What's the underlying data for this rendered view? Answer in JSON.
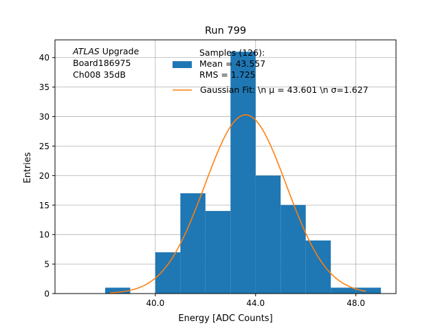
{
  "chart_data": {
    "type": "bar",
    "title": "Run 799",
    "xlabel": "Energy [ADC Counts]",
    "ylabel": "Entries",
    "xlim": [
      36.0,
      49.6
    ],
    "ylim": [
      0,
      43
    ],
    "grid": true,
    "x_ticks": [
      40.0,
      44.0,
      48.0
    ],
    "x_tick_labels": [
      "40.0",
      "44.0",
      "48.0"
    ],
    "y_ticks": [
      0,
      5,
      10,
      15,
      20,
      25,
      30,
      35,
      40
    ],
    "y_tick_labels": [
      "0",
      "5",
      "10",
      "15",
      "20",
      "25",
      "30",
      "35",
      "40"
    ],
    "bin_edges": [
      38.0,
      39.0,
      40.0,
      41.0,
      42.0,
      43.0,
      44.0,
      45.0,
      46.0,
      47.0,
      48.0,
      49.0
    ],
    "counts": [
      1,
      0,
      7,
      17,
      14,
      41,
      20,
      15,
      9,
      1,
      1
    ],
    "fit": {
      "name": "Gaussian Fit",
      "mu": 43.601,
      "sigma": 1.627,
      "amplitude": 30.3,
      "x_range": [
        38.2,
        48.4
      ]
    },
    "legend": {
      "location": "top-right",
      "entries": [
        {
          "label": "Samples (126):\n Mean = 43.557\n RMS = 1.725",
          "color": "#1f77b4",
          "kind": "patch"
        },
        {
          "label": "Gaussian Fit: \\n μ = 43.601 \\n σ=1.627",
          "color": "#ff7f0e",
          "kind": "line"
        }
      ]
    },
    "annotation": {
      "lines": [
        "ATLAS Upgrade",
        " Board186975",
        " Ch008 35dB"
      ]
    },
    "colors": {
      "bars": "#1f77b4",
      "fit": "#ff7f0e",
      "grid": "#b0b0b0"
    }
  }
}
